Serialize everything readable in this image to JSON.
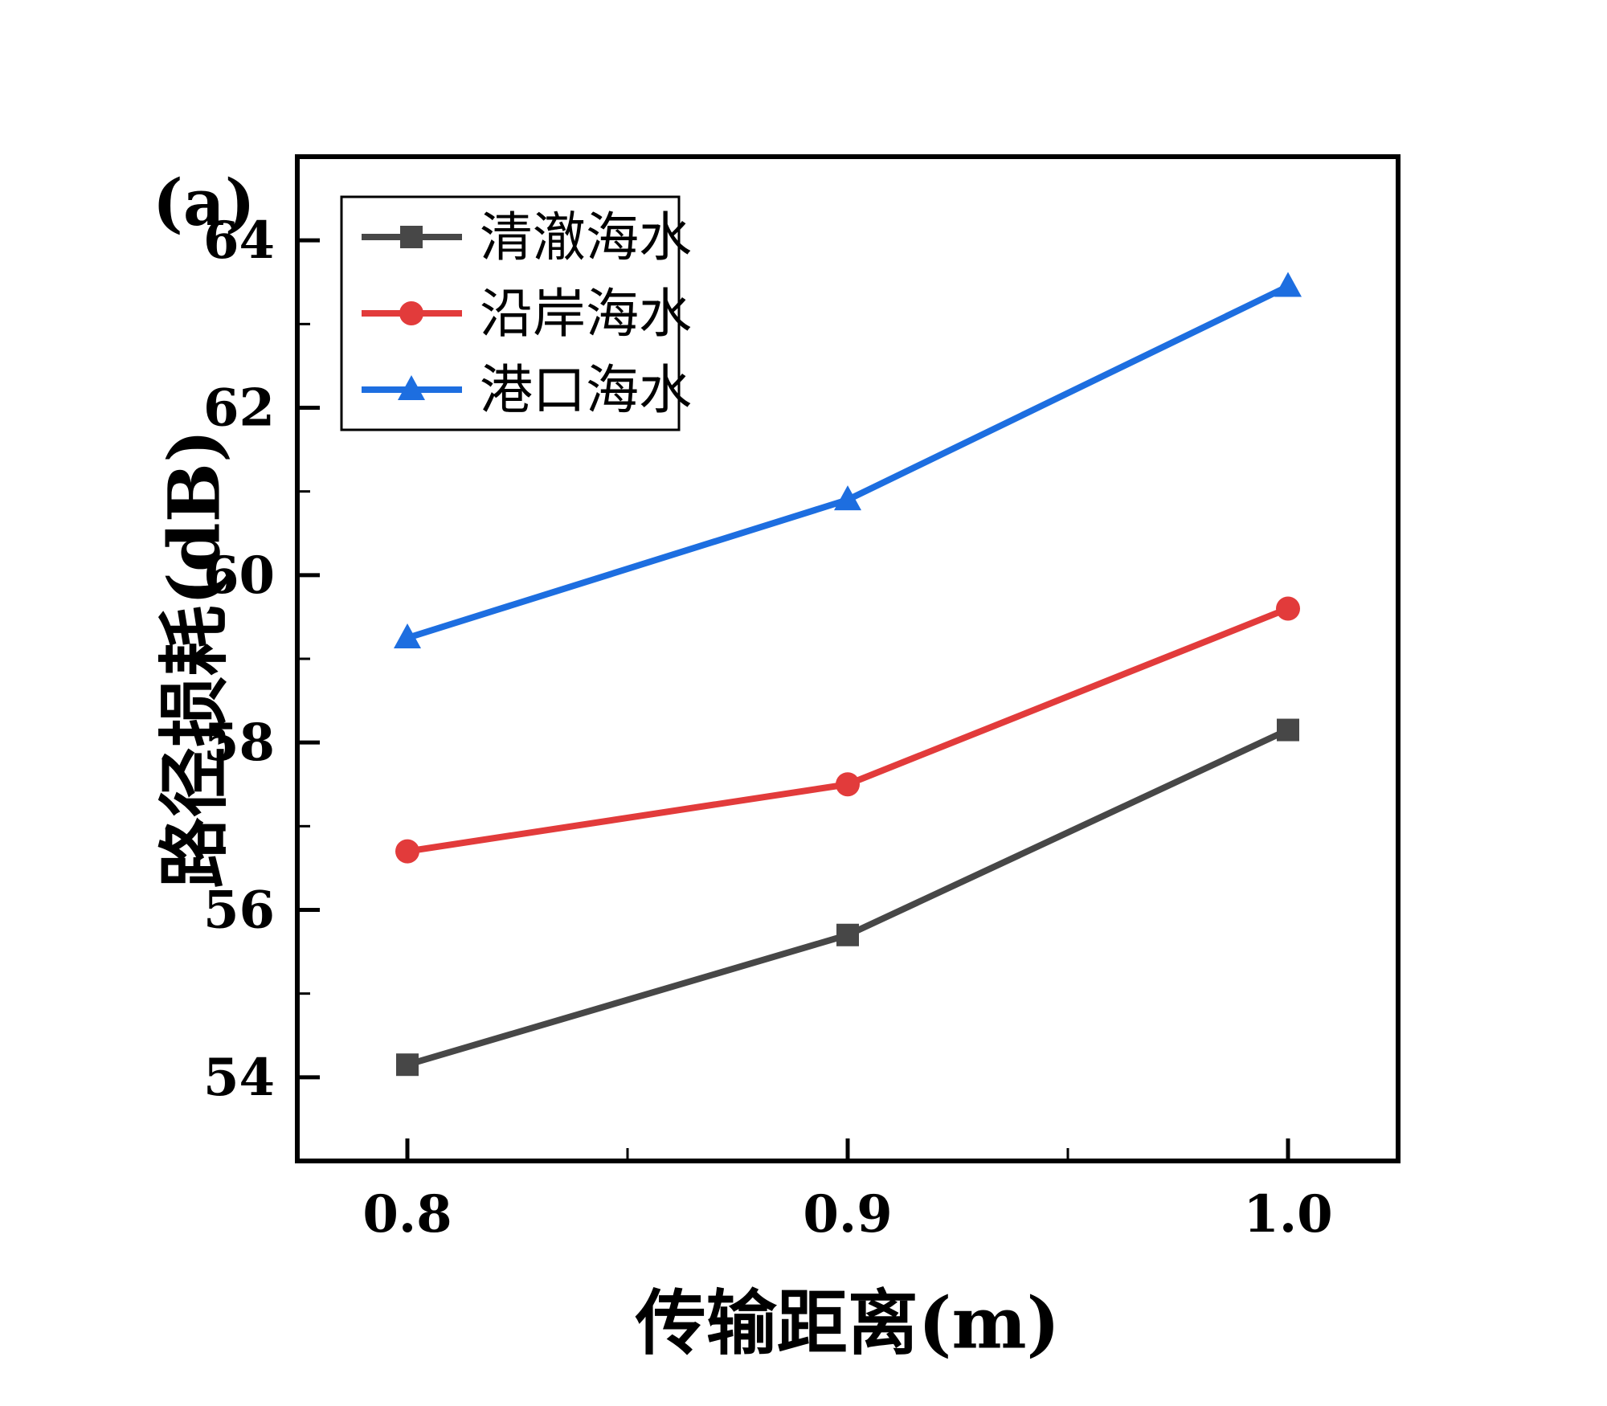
{
  "figure": {
    "panel_label": "(a)"
  },
  "chart_data": {
    "type": "line",
    "title": "(a)",
    "xlabel": "传输距离(m)",
    "ylabel": "路径损耗(dB)",
    "x": [
      0.8,
      0.9,
      1.0
    ],
    "series": [
      {
        "name": "清澈海水",
        "values": [
          54.15,
          55.7,
          58.15
        ],
        "color": "#474747",
        "marker": "square"
      },
      {
        "name": "沿岸海水",
        "values": [
          56.7,
          57.5,
          59.6
        ],
        "color": "#e23b3b",
        "marker": "circle"
      },
      {
        "name": "港口海水",
        "values": [
          59.25,
          60.9,
          63.45
        ],
        "color": "#1d6ee0",
        "marker": "triangle"
      }
    ],
    "xlim": [
      0.775,
      1.025
    ],
    "ylim": [
      53,
      65
    ],
    "x_ticks": [
      0.8,
      0.9,
      1.0
    ],
    "x_minor_ticks": [
      0.85,
      0.95
    ],
    "y_ticks": [
      54,
      56,
      58,
      60,
      62,
      64
    ],
    "y_minor_ticks": [
      55,
      57,
      59,
      61,
      63
    ],
    "legend_position": "top-left",
    "grid": false,
    "frame_color": "#000000"
  }
}
